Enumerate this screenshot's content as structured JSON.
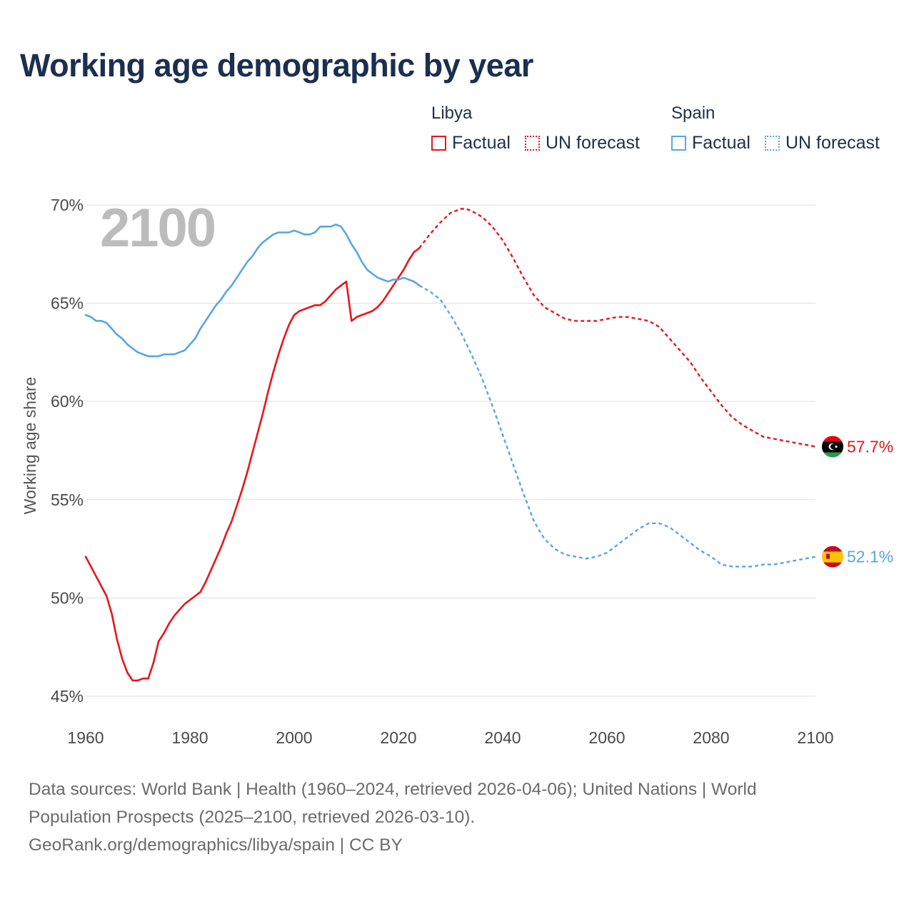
{
  "title": "Working age demographic by year",
  "big_year": "2100",
  "legend": {
    "libya": {
      "name": "Libya",
      "factual": "Factual",
      "forecast": "UN forecast",
      "color": "#e8151b"
    },
    "spain": {
      "name": "Spain",
      "factual": "Factual",
      "forecast": "UN forecast",
      "color": "#5aa5e6"
    }
  },
  "footer": {
    "line1": "Data sources: World Bank | Health (1960–2024, retrieved 2026-04-06); United Nations | World",
    "line2": "Population Prospects (2025–2100, retrieved 2026-03-10).",
    "line3": "GeoRank.org/demographics/libya/spain | CC BY"
  },
  "chart_data": {
    "type": "line",
    "title": "Working age demographic by year",
    "xlabel": "",
    "ylabel": "Working age share",
    "xlim": [
      1960,
      2100
    ],
    "ylim": [
      45,
      70
    ],
    "x_ticks": [
      1960,
      1980,
      2000,
      2020,
      2040,
      2060,
      2080,
      2100
    ],
    "x_tick_labels": [
      "1960",
      "1980",
      "2000",
      "2020",
      "2040",
      "2060",
      "2080",
      "2100"
    ],
    "y_ticks": [
      45,
      50,
      55,
      60,
      65,
      70
    ],
    "y_tick_labels": [
      "45%",
      "50%",
      "55%",
      "60%",
      "65%",
      "70%"
    ],
    "grid": true,
    "series": [
      {
        "name": "Libya",
        "color": "#e8151b",
        "end_label": "57.7%",
        "flag": "libya-flag-icon",
        "factual": {
          "x": [
            1960,
            1962,
            1964,
            1965,
            1966,
            1967,
            1968,
            1969,
            1970,
            1971,
            1972,
            1973,
            1974,
            1975,
            1976,
            1977,
            1978,
            1979,
            1980,
            1981,
            1982,
            1983,
            1984,
            1985,
            1986,
            1987,
            1988,
            1989,
            1990,
            1991,
            1992,
            1993,
            1994,
            1995,
            1996,
            1997,
            1998,
            1999,
            2000,
            2001,
            2002,
            2003,
            2004,
            2005,
            2006,
            2007,
            2008,
            2009,
            2010,
            2011,
            2012,
            2013,
            2014,
            2015,
            2016,
            2017,
            2018,
            2019,
            2020,
            2021,
            2022,
            2023,
            2024
          ],
          "y": [
            52.1,
            51.1,
            50.1,
            49.2,
            47.9,
            46.9,
            46.2,
            45.8,
            45.8,
            45.9,
            45.9,
            46.7,
            47.8,
            48.2,
            48.7,
            49.1,
            49.4,
            49.7,
            49.9,
            50.1,
            50.3,
            50.8,
            51.4,
            52.0,
            52.6,
            53.3,
            53.9,
            54.7,
            55.5,
            56.4,
            57.4,
            58.4,
            59.4,
            60.5,
            61.5,
            62.4,
            63.2,
            63.9,
            64.4,
            64.6,
            64.7,
            64.8,
            64.9,
            64.9,
            65.1,
            65.4,
            65.7,
            65.9,
            66.1,
            64.1,
            64.3,
            64.4,
            64.5,
            64.6,
            64.8,
            65.1,
            65.5,
            65.9,
            66.3,
            66.7,
            67.2,
            67.6,
            67.8
          ]
        },
        "forecast": {
          "x": [
            2024,
            2026,
            2028,
            2030,
            2032,
            2033,
            2034,
            2036,
            2038,
            2040,
            2042,
            2044,
            2046,
            2048,
            2050,
            2052,
            2054,
            2056,
            2058,
            2060,
            2062,
            2064,
            2066,
            2068,
            2070,
            2072,
            2074,
            2076,
            2078,
            2080,
            2082,
            2084,
            2086,
            2088,
            2090,
            2092,
            2094,
            2096,
            2098,
            2100
          ],
          "y": [
            67.8,
            68.5,
            69.1,
            69.6,
            69.8,
            69.8,
            69.7,
            69.4,
            68.9,
            68.2,
            67.3,
            66.3,
            65.4,
            64.8,
            64.5,
            64.2,
            64.1,
            64.1,
            64.1,
            64.2,
            64.3,
            64.3,
            64.2,
            64.1,
            63.8,
            63.2,
            62.6,
            62.0,
            61.2,
            60.5,
            59.8,
            59.2,
            58.8,
            58.5,
            58.2,
            58.1,
            58.0,
            57.9,
            57.8,
            57.7
          ]
        }
      },
      {
        "name": "Spain",
        "color": "#5aa5e6",
        "end_label": "52.1%",
        "flag": "spain-flag-icon",
        "factual": {
          "x": [
            1960,
            1961,
            1962,
            1963,
            1964,
            1965,
            1966,
            1967,
            1968,
            1969,
            1970,
            1971,
            1972,
            1973,
            1974,
            1975,
            1976,
            1977,
            1978,
            1979,
            1980,
            1981,
            1982,
            1983,
            1984,
            1985,
            1986,
            1987,
            1988,
            1989,
            1990,
            1991,
            1992,
            1993,
            1994,
            1995,
            1996,
            1997,
            1998,
            1999,
            2000,
            2001,
            2002,
            2003,
            2004,
            2005,
            2006,
            2007,
            2008,
            2009,
            2010,
            2011,
            2012,
            2013,
            2014,
            2015,
            2016,
            2017,
            2018,
            2019,
            2020,
            2021,
            2022,
            2023,
            2024
          ],
          "y": [
            64.4,
            64.3,
            64.1,
            64.1,
            64.0,
            63.7,
            63.4,
            63.2,
            62.9,
            62.7,
            62.5,
            62.4,
            62.3,
            62.3,
            62.3,
            62.4,
            62.4,
            62.4,
            62.5,
            62.6,
            62.9,
            63.2,
            63.7,
            64.1,
            64.5,
            64.9,
            65.2,
            65.6,
            65.9,
            66.3,
            66.7,
            67.1,
            67.4,
            67.8,
            68.1,
            68.3,
            68.5,
            68.6,
            68.6,
            68.6,
            68.7,
            68.6,
            68.5,
            68.5,
            68.6,
            68.9,
            68.9,
            68.9,
            69.0,
            68.9,
            68.5,
            68.0,
            67.6,
            67.1,
            66.7,
            66.5,
            66.3,
            66.2,
            66.1,
            66.2,
            66.2,
            66.3,
            66.2,
            66.1,
            65.9
          ]
        },
        "forecast": {
          "x": [
            2024,
            2026,
            2028,
            2030,
            2032,
            2034,
            2036,
            2038,
            2040,
            2042,
            2044,
            2046,
            2048,
            2050,
            2052,
            2054,
            2056,
            2058,
            2060,
            2062,
            2064,
            2066,
            2068,
            2070,
            2072,
            2074,
            2076,
            2078,
            2080,
            2082,
            2084,
            2086,
            2088,
            2090,
            2092,
            2094,
            2096,
            2098,
            2100
          ],
          "y": [
            65.9,
            65.6,
            65.2,
            64.4,
            63.5,
            62.4,
            61.2,
            59.8,
            58.3,
            56.8,
            55.3,
            53.9,
            53.0,
            52.5,
            52.2,
            52.1,
            52.0,
            52.1,
            52.3,
            52.7,
            53.1,
            53.5,
            53.8,
            53.8,
            53.6,
            53.2,
            52.8,
            52.4,
            52.1,
            51.7,
            51.6,
            51.6,
            51.6,
            51.7,
            51.7,
            51.8,
            51.9,
            52.0,
            52.1
          ]
        }
      }
    ]
  }
}
